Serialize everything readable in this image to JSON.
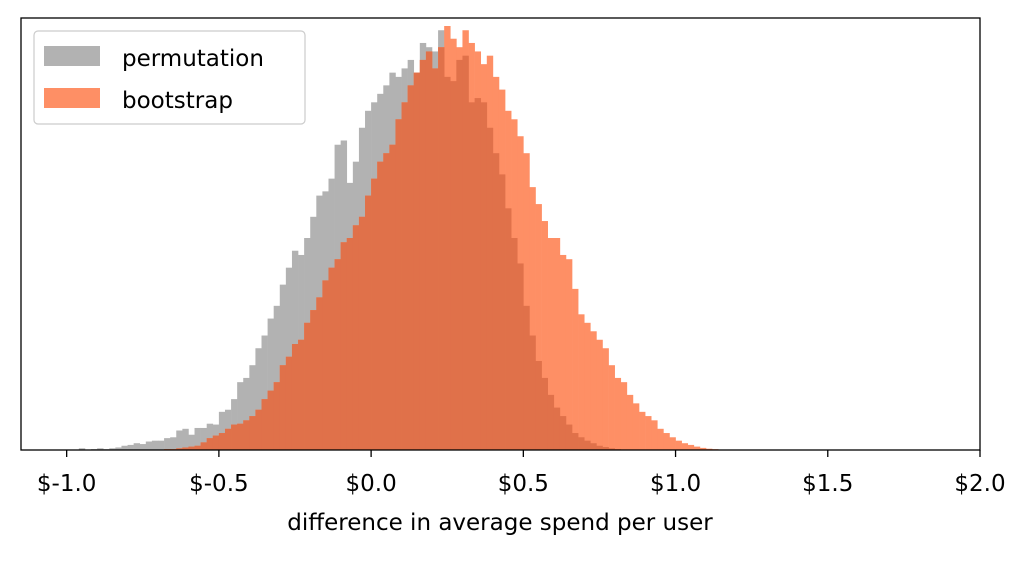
{
  "chart_data": {
    "type": "histogram",
    "title": "",
    "xlabel": "difference in average spend per user",
    "ylabel": "",
    "xlim": [
      -1.15,
      2.0
    ],
    "ylim": [
      0,
      1.0
    ],
    "x_ticks": [
      -1.0,
      -0.5,
      0.0,
      0.5,
      1.0,
      1.5,
      2.0
    ],
    "x_tick_labels": [
      "$-1.0",
      "$-0.5",
      "$0.0",
      "$0.5",
      "$1.0",
      "$1.5",
      "$2.0"
    ],
    "y_ticks_visible": false,
    "legend_position": "top-left",
    "legend": [
      "permutation",
      "bootstrap"
    ],
    "overlap_color": "#e0714a",
    "series": [
      {
        "name": "permutation",
        "color": "#b2b2b2",
        "bin_start": -0.98,
        "bin_width": 0.02,
        "counts": [
          0.0,
          0.004,
          0.0,
          0.002,
          0.004,
          0.002,
          0.004,
          0.006,
          0.01,
          0.012,
          0.016,
          0.014,
          0.02,
          0.022,
          0.022,
          0.028,
          0.03,
          0.046,
          0.05,
          0.036,
          0.052,
          0.052,
          0.062,
          0.06,
          0.09,
          0.095,
          0.12,
          0.16,
          0.17,
          0.2,
          0.24,
          0.27,
          0.31,
          0.34,
          0.39,
          0.43,
          0.47,
          0.46,
          0.5,
          0.55,
          0.6,
          0.61,
          0.64,
          0.72,
          0.73,
          0.63,
          0.68,
          0.76,
          0.8,
          0.82,
          0.84,
          0.86,
          0.89,
          0.88,
          0.9,
          0.92,
          0.89,
          0.96,
          0.95,
          0.94,
          0.99,
          0.88,
          0.87,
          0.92,
          0.93,
          0.82,
          0.83,
          0.82,
          0.76,
          0.7,
          0.65,
          0.57,
          0.5,
          0.44,
          0.34,
          0.27,
          0.21,
          0.17,
          0.13,
          0.1,
          0.08,
          0.06,
          0.04,
          0.03,
          0.022,
          0.016,
          0.01,
          0.007,
          0.004,
          0.002,
          0.001
        ]
      },
      {
        "name": "bootstrap",
        "color": "#fe8f65",
        "bin_start": -0.7,
        "bin_width": 0.02,
        "counts": [
          0.001,
          0.002,
          0.002,
          0.004,
          0.006,
          0.008,
          0.01,
          0.018,
          0.028,
          0.034,
          0.04,
          0.05,
          0.06,
          0.062,
          0.07,
          0.08,
          0.095,
          0.12,
          0.14,
          0.16,
          0.2,
          0.22,
          0.25,
          0.26,
          0.3,
          0.33,
          0.36,
          0.4,
          0.43,
          0.45,
          0.49,
          0.5,
          0.53,
          0.55,
          0.6,
          0.64,
          0.68,
          0.7,
          0.72,
          0.78,
          0.82,
          0.86,
          0.89,
          0.92,
          0.94,
          0.9,
          0.95,
          1.0,
          0.97,
          0.95,
          0.99,
          0.96,
          0.94,
          0.91,
          0.93,
          0.88,
          0.85,
          0.8,
          0.78,
          0.74,
          0.7,
          0.62,
          0.58,
          0.54,
          0.5,
          0.5,
          0.46,
          0.45,
          0.38,
          0.32,
          0.3,
          0.28,
          0.26,
          0.24,
          0.2,
          0.17,
          0.16,
          0.13,
          0.11,
          0.09,
          0.08,
          0.07,
          0.05,
          0.04,
          0.03,
          0.022,
          0.016,
          0.012,
          0.008,
          0.005,
          0.003,
          0.002
        ]
      }
    ]
  }
}
